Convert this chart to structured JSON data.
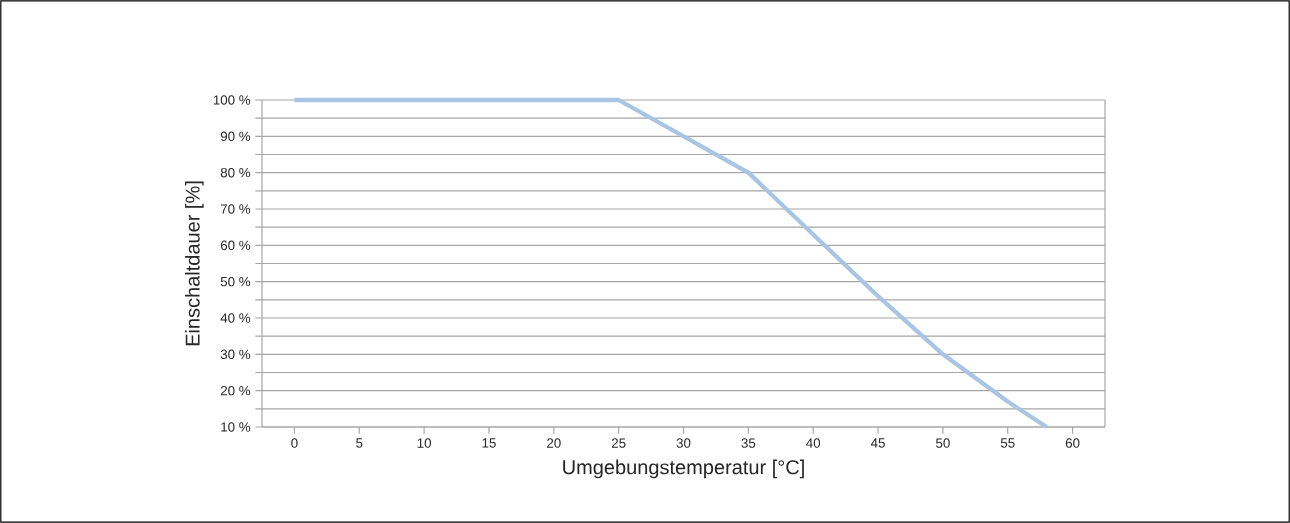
{
  "chart_data": {
    "type": "line",
    "xlabel": "Umgebungstemperatur [°C]",
    "ylabel": "Einschaltdauer [%]",
    "x": [
      0,
      25,
      30,
      35,
      40,
      45,
      50,
      55,
      58
    ],
    "series": [
      {
        "color": "#a9c5e4",
        "values": [
          100,
          100,
          90,
          80,
          63,
          46,
          30,
          17,
          10
        ]
      }
    ],
    "xlim": [
      -2.5,
      62.5
    ],
    "ylim": [
      10,
      100
    ],
    "xticks": [
      0,
      5,
      10,
      15,
      20,
      25,
      30,
      35,
      40,
      45,
      50,
      55,
      60
    ],
    "yticks": [
      {
        "value": 10,
        "label": "10 %"
      },
      {
        "value": 15,
        "label": null
      },
      {
        "value": 20,
        "label": "20 %"
      },
      {
        "value": 25,
        "label": null
      },
      {
        "value": 30,
        "label": "30 %"
      },
      {
        "value": 35,
        "label": null
      },
      {
        "value": 40,
        "label": "40 %"
      },
      {
        "value": 45,
        "label": null
      },
      {
        "value": 50,
        "label": "50 %"
      },
      {
        "value": 55,
        "label": null
      },
      {
        "value": 60,
        "label": "60 %"
      },
      {
        "value": 65,
        "label": null
      },
      {
        "value": 70,
        "label": "70 %"
      },
      {
        "value": 75,
        "label": null
      },
      {
        "value": 80,
        "label": "80 %"
      },
      {
        "value": 85,
        "label": null
      },
      {
        "value": 90,
        "label": "90 %"
      },
      {
        "value": 95,
        "label": null
      },
      {
        "value": 100,
        "label": "100 %"
      }
    ],
    "grid": "y",
    "marker": "none",
    "line_style": "solid"
  }
}
